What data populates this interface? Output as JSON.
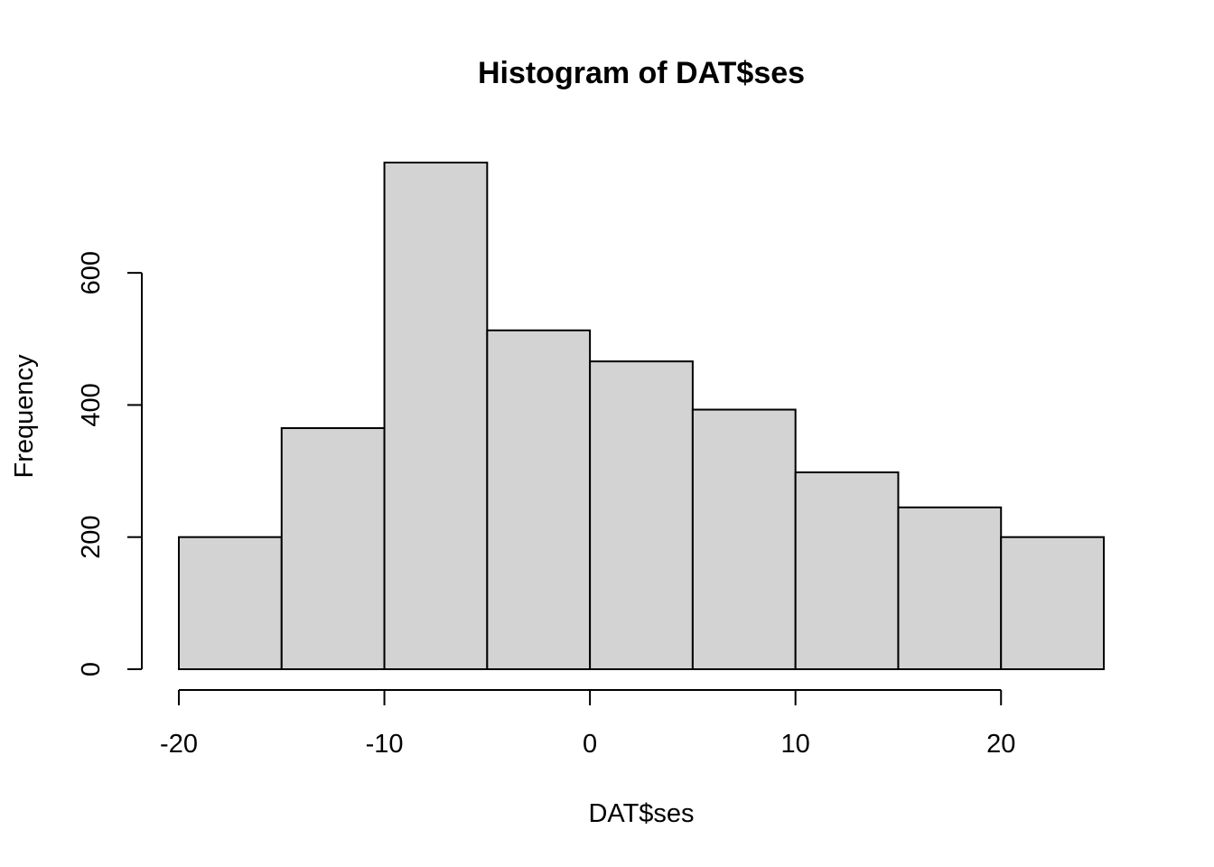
{
  "chart_data": {
    "type": "bar",
    "title": "Histogram of DAT$ses",
    "xlabel": "DAT$ses",
    "ylabel": "Frequency",
    "bins": [
      {
        "from": -20,
        "to": -15,
        "count": 200
      },
      {
        "from": -15,
        "to": -10,
        "count": 365
      },
      {
        "from": -10,
        "to": -5,
        "count": 767
      },
      {
        "from": -5,
        "to": 0,
        "count": 513
      },
      {
        "from": 0,
        "to": 5,
        "count": 466
      },
      {
        "from": 5,
        "to": 10,
        "count": 393
      },
      {
        "from": 10,
        "to": 15,
        "count": 298
      },
      {
        "from": 15,
        "to": 20,
        "count": 245
      },
      {
        "from": 20,
        "to": 25,
        "count": 200
      }
    ],
    "x_ticks": [
      -20,
      -10,
      0,
      10,
      20
    ],
    "x_tick_labels": [
      "-20",
      "-10",
      "0",
      "10",
      "20"
    ],
    "y_ticks": [
      0,
      200,
      400,
      600
    ],
    "y_tick_labels": [
      "0",
      "200",
      "400",
      "600"
    ],
    "xlim": [
      -20,
      25
    ],
    "ylim": [
      0,
      767
    ],
    "bar_color": "#d3d3d3",
    "grid": false,
    "legend": "none"
  }
}
